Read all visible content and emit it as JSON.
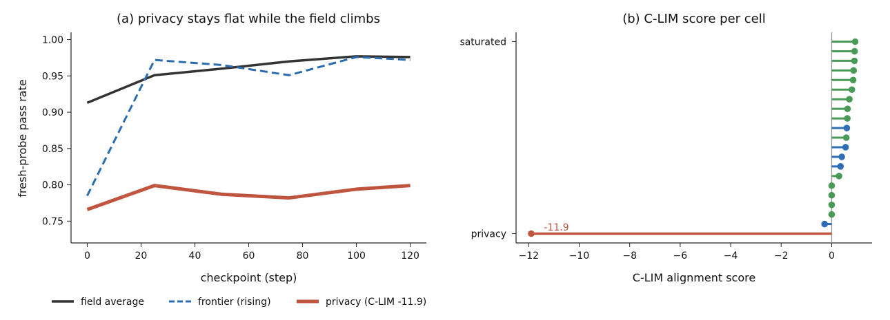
{
  "chart_data": [
    {
      "type": "line",
      "title": "(a) privacy stays flat while the field climbs",
      "xlabel": "checkpoint (step)",
      "ylabel": "fresh-probe pass rate",
      "xlim": [
        -6,
        126
      ],
      "ylim": [
        0.72,
        1.01
      ],
      "xticks": [
        0,
        20,
        40,
        60,
        80,
        100,
        120
      ],
      "yticks": [
        0.75,
        0.8,
        0.85,
        0.9,
        0.95,
        1.0
      ],
      "grid": false,
      "legend_position": "bottom-left, below plot",
      "series": [
        {
          "name": "field average",
          "color": "#333333",
          "style": "solid",
          "x": [
            0,
            25,
            50,
            75,
            100,
            120
          ],
          "y": [
            0.913,
            0.951,
            0.96,
            0.97,
            0.977,
            0.976
          ]
        },
        {
          "name": "frontier (rising)",
          "color": "#2b6cb0",
          "style": "dashed",
          "x": [
            0,
            25,
            50,
            75,
            100,
            120
          ],
          "y": [
            0.785,
            0.972,
            0.965,
            0.951,
            0.976,
            0.972
          ]
        },
        {
          "name": "privacy (C-LIM -11.9)",
          "color": "#c0553f",
          "style": "solid-thick",
          "x": [
            0,
            25,
            50,
            75,
            100,
            120
          ],
          "y": [
            0.766,
            0.799,
            0.787,
            0.782,
            0.794,
            0.799
          ]
        }
      ]
    },
    {
      "type": "lollipop",
      "title": "(b) C-LIM score per cell",
      "xlabel": "C-LIM alignment score",
      "xlim": [
        -12.5,
        1.6
      ],
      "xticks": [
        -12,
        -10,
        -8,
        -6,
        -4,
        -2,
        0
      ],
      "tick_labels": [
        "−12",
        "−10",
        "−8",
        "−6",
        "−4",
        "−2",
        "0"
      ],
      "y_categories": [
        "privacy",
        "saturated"
      ],
      "annotation": {
        "text": "-11.9",
        "color": "#c0553f"
      },
      "colors": {
        "positive": "#4a9a57",
        "frontier": "#2f6db5",
        "privacy": "#c0553f",
        "zero_line": "#999999"
      },
      "cells": [
        {
          "label": "privacy",
          "value": -11.9,
          "group": "privacy"
        },
        {
          "label": "",
          "value": -0.28,
          "group": "frontier"
        },
        {
          "label": "",
          "value": 0.0,
          "group": "positive"
        },
        {
          "label": "",
          "value": 0.0,
          "group": "positive"
        },
        {
          "label": "",
          "value": 0.0,
          "group": "positive"
        },
        {
          "label": "",
          "value": 0.0,
          "group": "positive"
        },
        {
          "label": "",
          "value": 0.29,
          "group": "positive"
        },
        {
          "label": "",
          "value": 0.35,
          "group": "frontier"
        },
        {
          "label": "",
          "value": 0.4,
          "group": "frontier"
        },
        {
          "label": "",
          "value": 0.55,
          "group": "frontier"
        },
        {
          "label": "",
          "value": 0.58,
          "group": "positive"
        },
        {
          "label": "",
          "value": 0.6,
          "group": "frontier"
        },
        {
          "label": "",
          "value": 0.62,
          "group": "positive"
        },
        {
          "label": "",
          "value": 0.63,
          "group": "positive"
        },
        {
          "label": "",
          "value": 0.7,
          "group": "positive"
        },
        {
          "label": "",
          "value": 0.8,
          "group": "positive"
        },
        {
          "label": "",
          "value": 0.85,
          "group": "positive"
        },
        {
          "label": "",
          "value": 0.87,
          "group": "positive"
        },
        {
          "label": "",
          "value": 0.9,
          "group": "positive"
        },
        {
          "label": "",
          "value": 0.91,
          "group": "positive"
        },
        {
          "label": "saturated",
          "value": 0.93,
          "group": "positive"
        }
      ]
    }
  ]
}
